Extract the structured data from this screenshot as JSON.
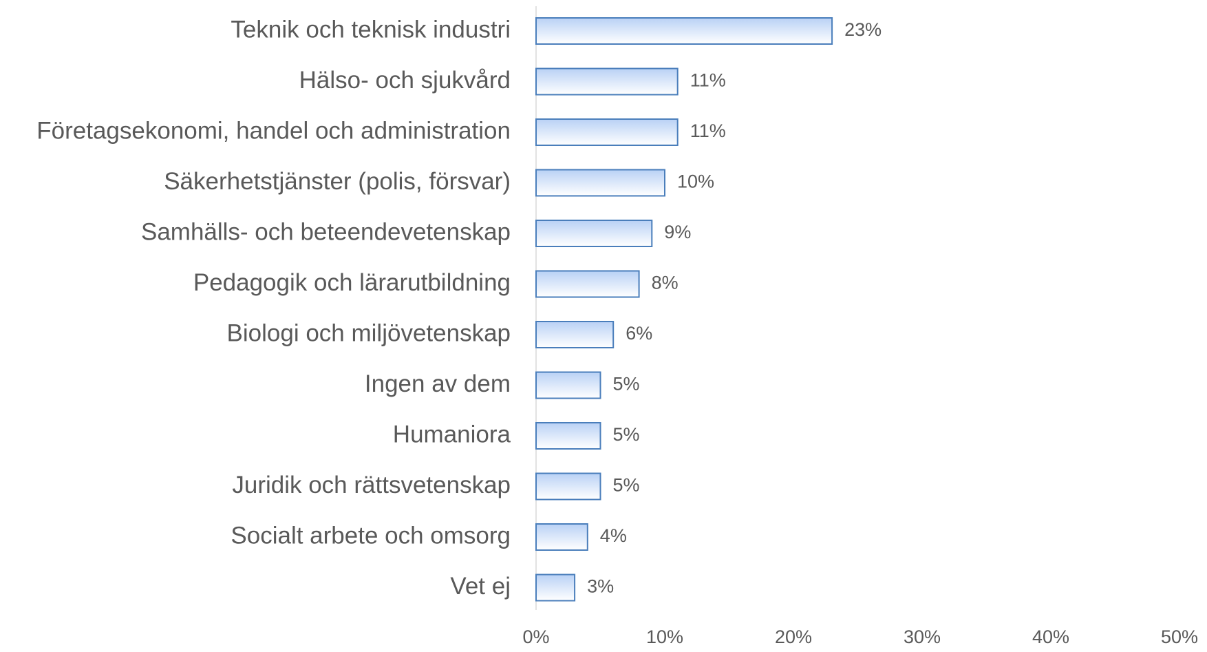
{
  "chart_data": {
    "type": "bar",
    "orientation": "horizontal",
    "categories": [
      "Teknik och teknisk industri",
      "Hälso- och sjukvård",
      "Företagsekonomi, handel och administration",
      "Säkerhetstjänster (polis, försvar)",
      "Samhälls- och beteendevetenskap",
      "Pedagogik och lärarutbildning",
      "Biologi och miljövetenskap",
      "Ingen av dem",
      "Humaniora",
      "Juridik och rättsvetenskap",
      "Socialt arbete och omsorg",
      "Vet ej"
    ],
    "values": [
      23,
      11,
      11,
      10,
      9,
      8,
      6,
      5,
      5,
      5,
      4,
      3
    ],
    "value_labels": [
      "23%",
      "11%",
      "11%",
      "10%",
      "9%",
      "8%",
      "6%",
      "5%",
      "5%",
      "5%",
      "4%",
      "3%"
    ],
    "color": "#b9d1f5",
    "edge_color": "#4a7ebb",
    "xlim": [
      0,
      50
    ],
    "xticks": [
      {
        "value": 0,
        "label": "0%"
      },
      {
        "value": 10,
        "label": "10%"
      },
      {
        "value": 20,
        "label": "20%"
      },
      {
        "value": 30,
        "label": "30%"
      },
      {
        "value": 40,
        "label": "40%"
      },
      {
        "value": 50,
        "label": "50%"
      }
    ],
    "grid": false
  }
}
